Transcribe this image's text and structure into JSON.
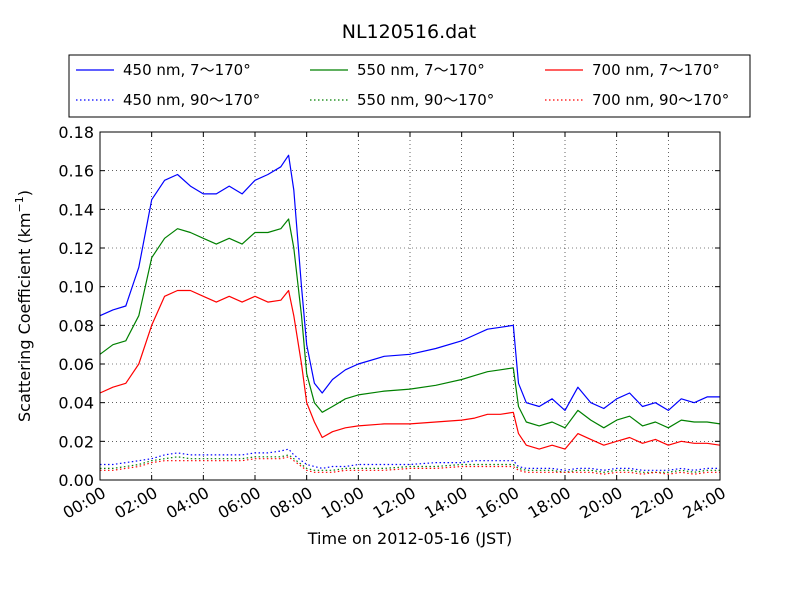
{
  "chart_data": {
    "type": "line",
    "title": "NL120516.dat",
    "xlabel": "Time on 2012-05-16 (JST)",
    "ylabel_main": "Scattering Coefficient (km",
    "ylabel_sup": "−1",
    "ylabel_close": ")",
    "xlim": [
      0,
      24
    ],
    "ylim": [
      0,
      0.18
    ],
    "grid": true,
    "legend_position": "top, above plot",
    "x_ticks": [
      0,
      2,
      4,
      6,
      8,
      10,
      12,
      14,
      16,
      18,
      20,
      22,
      24
    ],
    "x_tick_labels": [
      "00:00",
      "02:00",
      "04:00",
      "06:00",
      "08:00",
      "10:00",
      "12:00",
      "14:00",
      "16:00",
      "18:00",
      "20:00",
      "22:00",
      "24:00"
    ],
    "y_ticks": [
      0,
      0.02,
      0.04,
      0.06,
      0.08,
      0.1,
      0.12,
      0.14,
      0.16,
      0.18
    ],
    "y_tick_labels": [
      "0.00",
      "0.02",
      "0.04",
      "0.06",
      "0.08",
      "0.10",
      "0.12",
      "0.14",
      "0.16",
      "0.18"
    ],
    "x": [
      0,
      0.5,
      1,
      1.5,
      2,
      2.5,
      3,
      3.5,
      4,
      4.5,
      5,
      5.5,
      6,
      6.5,
      7,
      7.3,
      7.5,
      7.8,
      8,
      8.3,
      8.6,
      9,
      9.5,
      10,
      11,
      12,
      13,
      14,
      14.5,
      15,
      15.5,
      16,
      16.2,
      16.5,
      17,
      17.5,
      18,
      18.5,
      19,
      19.5,
      20,
      20.5,
      21,
      21.5,
      22,
      22.5,
      23,
      23.5,
      24
    ],
    "series": [
      {
        "name": "450 nm, 7～170°",
        "color": "#0000ff",
        "style": "solid",
        "values": [
          0.085,
          0.088,
          0.09,
          0.11,
          0.145,
          0.155,
          0.158,
          0.152,
          0.148,
          0.148,
          0.152,
          0.148,
          0.155,
          0.158,
          0.162,
          0.168,
          0.15,
          0.1,
          0.07,
          0.05,
          0.045,
          0.052,
          0.057,
          0.06,
          0.064,
          0.065,
          0.068,
          0.072,
          0.075,
          0.078,
          0.079,
          0.08,
          0.05,
          0.04,
          0.038,
          0.042,
          0.036,
          0.048,
          0.04,
          0.037,
          0.042,
          0.045,
          0.038,
          0.04,
          0.036,
          0.042,
          0.04,
          0.043,
          0.043
        ]
      },
      {
        "name": "550 nm, 7～170°",
        "color": "#008000",
        "style": "solid",
        "values": [
          0.065,
          0.07,
          0.072,
          0.085,
          0.115,
          0.125,
          0.13,
          0.128,
          0.125,
          0.122,
          0.125,
          0.122,
          0.128,
          0.128,
          0.13,
          0.135,
          0.12,
          0.085,
          0.055,
          0.04,
          0.035,
          0.038,
          0.042,
          0.044,
          0.046,
          0.047,
          0.049,
          0.052,
          0.054,
          0.056,
          0.057,
          0.058,
          0.038,
          0.03,
          0.028,
          0.03,
          0.027,
          0.036,
          0.031,
          0.027,
          0.031,
          0.033,
          0.028,
          0.03,
          0.027,
          0.031,
          0.03,
          0.03,
          0.029
        ]
      },
      {
        "name": "700 nm, 7～170°",
        "color": "#ff0000",
        "style": "solid",
        "values": [
          0.045,
          0.048,
          0.05,
          0.06,
          0.08,
          0.095,
          0.098,
          0.098,
          0.095,
          0.092,
          0.095,
          0.092,
          0.095,
          0.092,
          0.093,
          0.098,
          0.085,
          0.06,
          0.04,
          0.03,
          0.022,
          0.025,
          0.027,
          0.028,
          0.029,
          0.029,
          0.03,
          0.031,
          0.032,
          0.034,
          0.034,
          0.035,
          0.024,
          0.018,
          0.016,
          0.018,
          0.016,
          0.024,
          0.021,
          0.018,
          0.02,
          0.022,
          0.019,
          0.021,
          0.018,
          0.02,
          0.019,
          0.019,
          0.018
        ]
      },
      {
        "name": "450 nm, 90～170°",
        "color": "#0000ff",
        "style": "dotted",
        "values": [
          0.008,
          0.008,
          0.009,
          0.01,
          0.011,
          0.013,
          0.014,
          0.013,
          0.013,
          0.013,
          0.013,
          0.013,
          0.014,
          0.014,
          0.015,
          0.016,
          0.013,
          0.01,
          0.008,
          0.007,
          0.006,
          0.007,
          0.007,
          0.008,
          0.008,
          0.008,
          0.009,
          0.009,
          0.01,
          0.01,
          0.01,
          0.01,
          0.007,
          0.006,
          0.006,
          0.006,
          0.005,
          0.006,
          0.006,
          0.005,
          0.006,
          0.006,
          0.005,
          0.005,
          0.005,
          0.006,
          0.005,
          0.006,
          0.006
        ]
      },
      {
        "name": "550 nm, 90～170°",
        "color": "#008000",
        "style": "dotted",
        "values": [
          0.006,
          0.006,
          0.007,
          0.008,
          0.01,
          0.011,
          0.012,
          0.011,
          0.011,
          0.011,
          0.011,
          0.011,
          0.012,
          0.012,
          0.012,
          0.013,
          0.011,
          0.008,
          0.006,
          0.005,
          0.005,
          0.005,
          0.006,
          0.006,
          0.006,
          0.007,
          0.007,
          0.008,
          0.008,
          0.008,
          0.008,
          0.008,
          0.006,
          0.005,
          0.005,
          0.005,
          0.004,
          0.005,
          0.005,
          0.004,
          0.005,
          0.005,
          0.004,
          0.004,
          0.004,
          0.005,
          0.004,
          0.005,
          0.005
        ]
      },
      {
        "name": "700 nm, 90～170°",
        "color": "#ff0000",
        "style": "dotted",
        "values": [
          0.005,
          0.005,
          0.006,
          0.007,
          0.009,
          0.01,
          0.01,
          0.01,
          0.01,
          0.01,
          0.01,
          0.01,
          0.011,
          0.011,
          0.011,
          0.012,
          0.01,
          0.007,
          0.005,
          0.004,
          0.004,
          0.004,
          0.005,
          0.005,
          0.005,
          0.006,
          0.006,
          0.007,
          0.007,
          0.007,
          0.007,
          0.007,
          0.005,
          0.004,
          0.004,
          0.004,
          0.004,
          0.004,
          0.004,
          0.003,
          0.004,
          0.004,
          0.003,
          0.004,
          0.003,
          0.004,
          0.003,
          0.004,
          0.004
        ]
      }
    ]
  }
}
